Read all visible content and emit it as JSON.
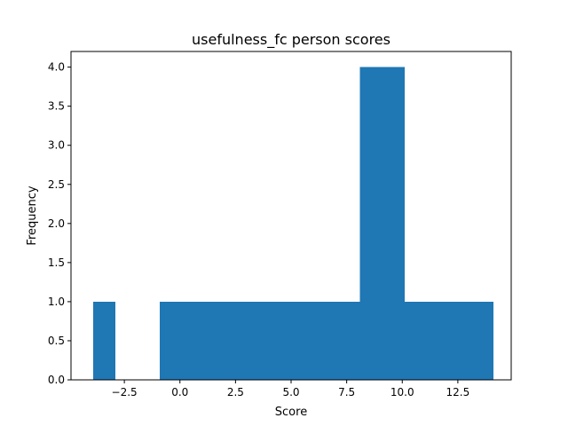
{
  "chart_data": {
    "type": "bar",
    "title": "usefulness_fc person scores",
    "xlabel": "Score",
    "ylabel": "Frequency",
    "xlim": [
      -4.9,
      14.9
    ],
    "ylim": [
      0,
      4.2
    ],
    "grid": false,
    "bar_color": "#1f77b4",
    "bins": [
      {
        "x0": -3.9,
        "x1": -2.9,
        "count": 1
      },
      {
        "x0": -2.9,
        "x1": -1.9,
        "count": 0
      },
      {
        "x0": -1.9,
        "x1": -0.9,
        "count": 0
      },
      {
        "x0": -0.9,
        "x1": 0.1,
        "count": 1
      },
      {
        "x0": 0.1,
        "x1": 1.1,
        "count": 1
      },
      {
        "x0": 1.1,
        "x1": 2.1,
        "count": 1
      },
      {
        "x0": 2.1,
        "x1": 3.1,
        "count": 1
      },
      {
        "x0": 3.1,
        "x1": 4.1,
        "count": 1
      },
      {
        "x0": 4.1,
        "x1": 5.1,
        "count": 1
      },
      {
        "x0": 5.1,
        "x1": 6.1,
        "count": 1
      },
      {
        "x0": 6.1,
        "x1": 7.1,
        "count": 1
      },
      {
        "x0": 7.1,
        "x1": 8.1,
        "count": 1
      },
      {
        "x0": 8.1,
        "x1": 9.1,
        "count": 4
      },
      {
        "x0": 9.1,
        "x1": 10.1,
        "count": 4
      },
      {
        "x0": 10.1,
        "x1": 11.1,
        "count": 1
      },
      {
        "x0": 11.1,
        "x1": 12.1,
        "count": 1
      },
      {
        "x0": 12.1,
        "x1": 13.1,
        "count": 1
      },
      {
        "x0": 13.1,
        "x1": 14.1,
        "count": 1
      }
    ],
    "x_ticks": [
      {
        "value": -2.5,
        "label": "−2.5"
      },
      {
        "value": 0,
        "label": "0.0"
      },
      {
        "value": 2.5,
        "label": "2.5"
      },
      {
        "value": 5,
        "label": "5.0"
      },
      {
        "value": 7.5,
        "label": "7.5"
      },
      {
        "value": 10,
        "label": "10.0"
      },
      {
        "value": 12.5,
        "label": "12.5"
      }
    ],
    "y_ticks": [
      {
        "value": 0,
        "label": "0.0"
      },
      {
        "value": 0.5,
        "label": "0.5"
      },
      {
        "value": 1,
        "label": "1.0"
      },
      {
        "value": 1.5,
        "label": "1.5"
      },
      {
        "value": 2,
        "label": "2.0"
      },
      {
        "value": 2.5,
        "label": "2.5"
      },
      {
        "value": 3,
        "label": "3.0"
      },
      {
        "value": 3.5,
        "label": "3.5"
      },
      {
        "value": 4,
        "label": "4.0"
      }
    ]
  }
}
